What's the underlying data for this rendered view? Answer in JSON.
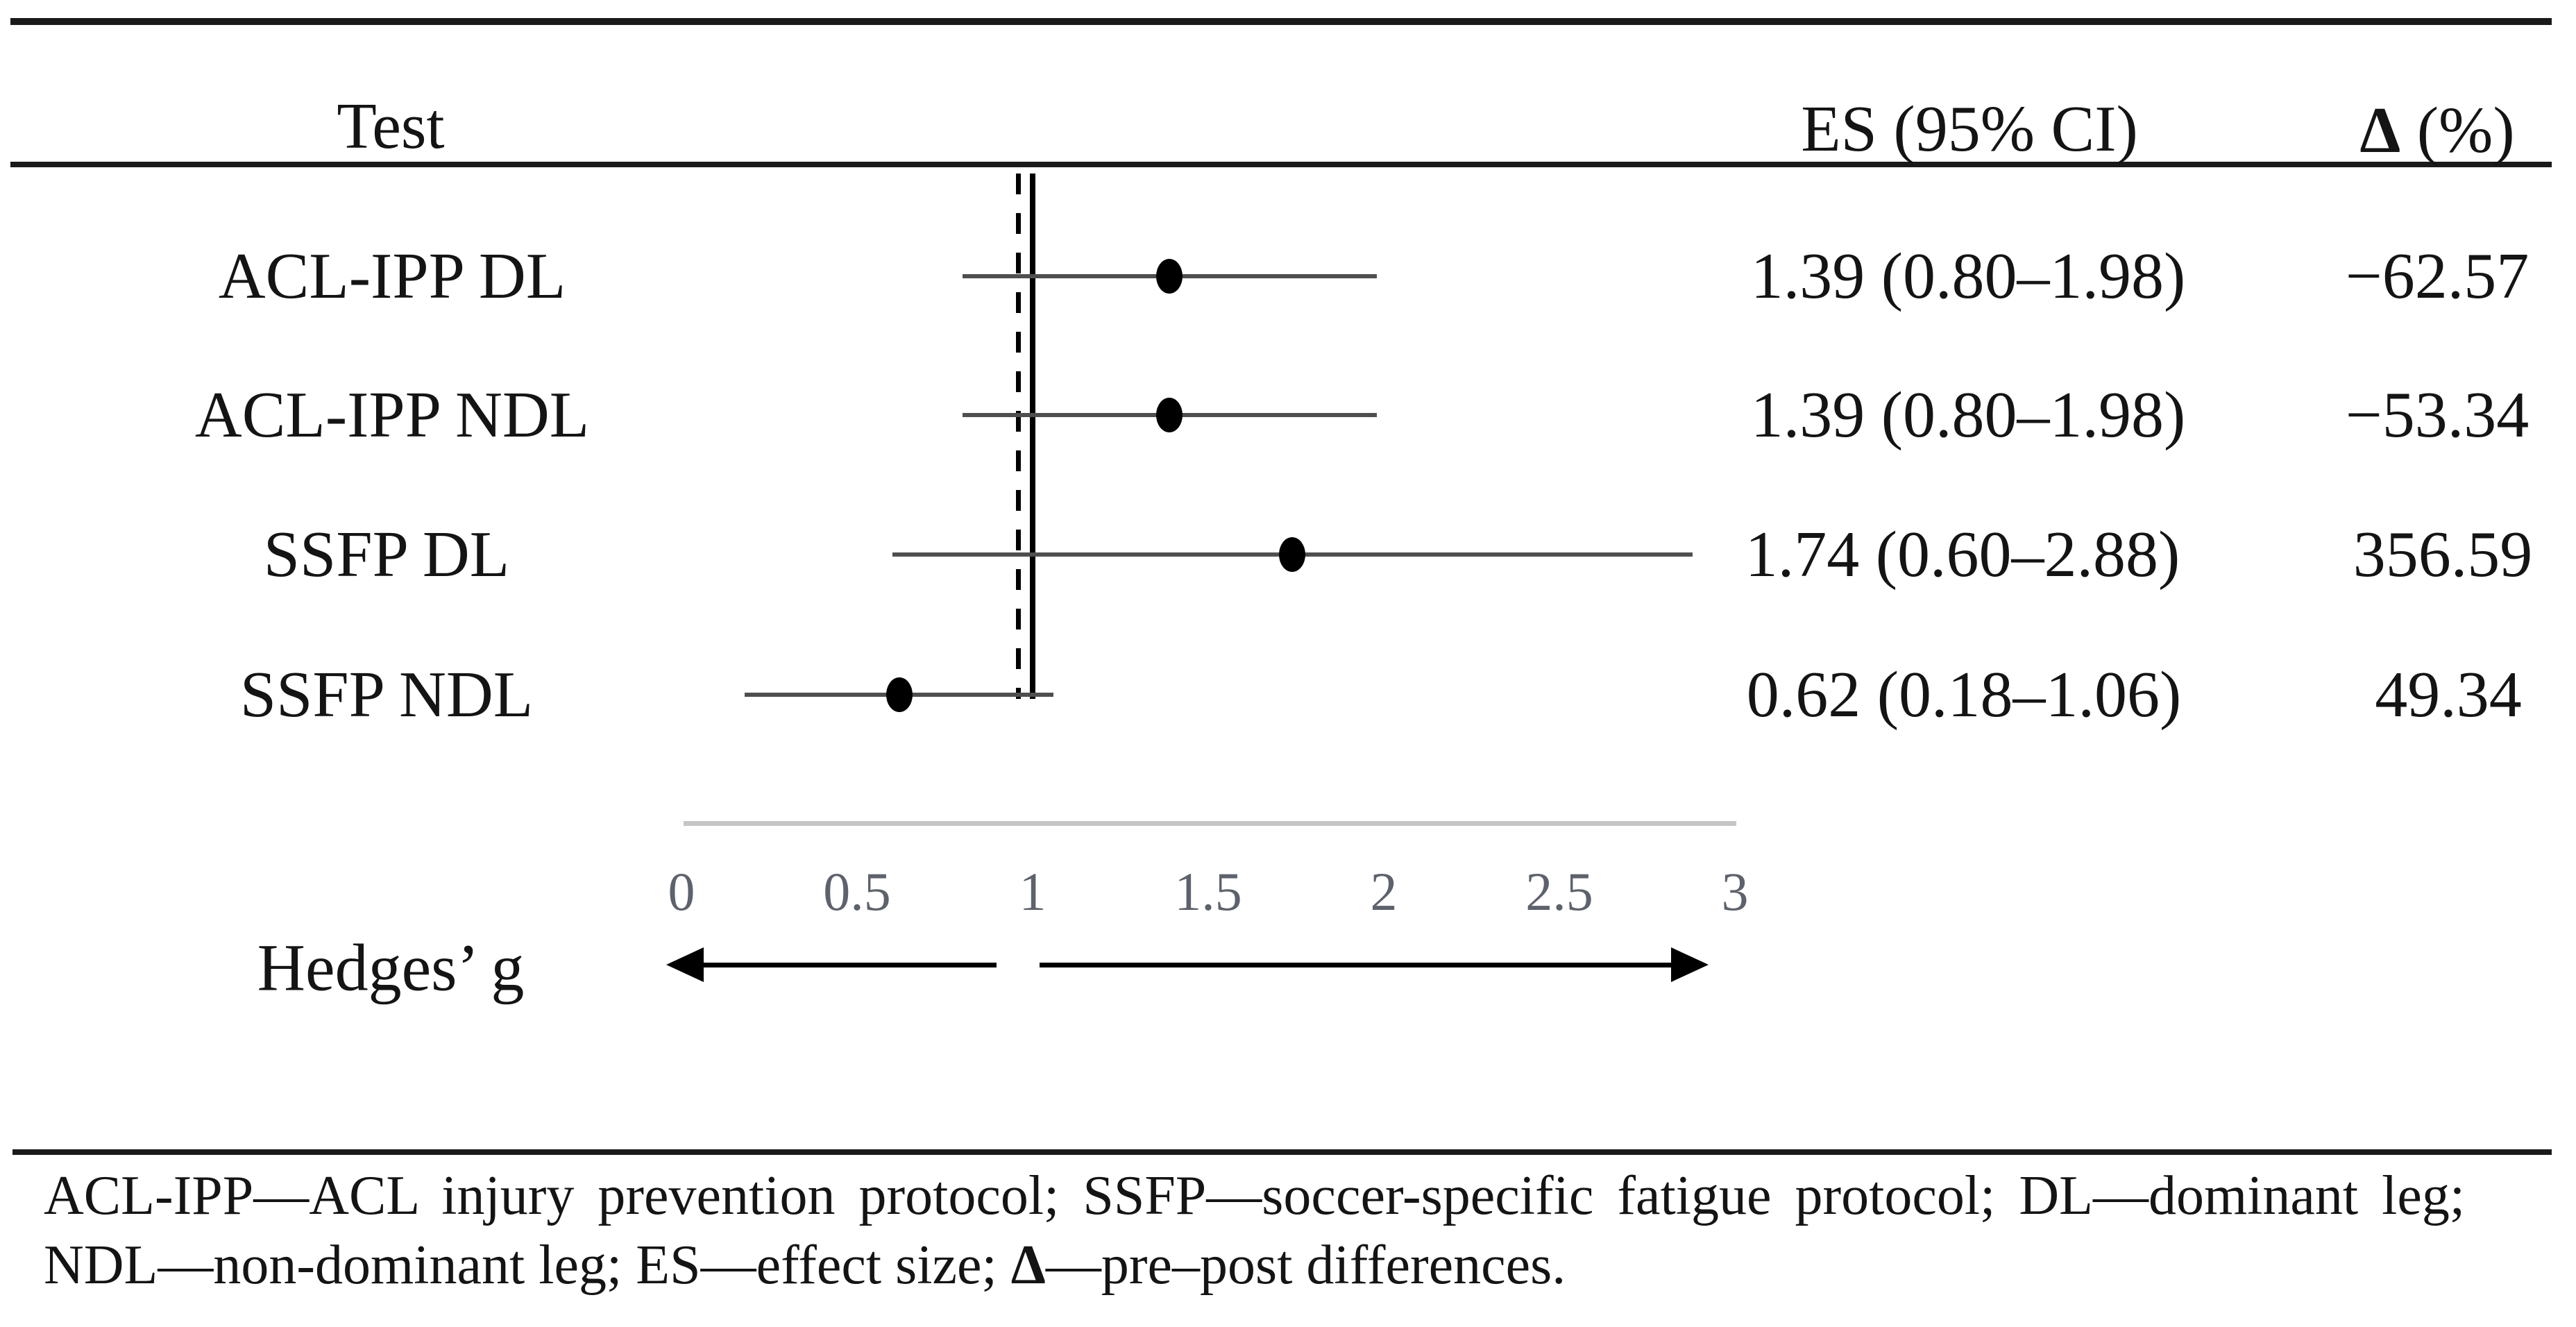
{
  "figure": {
    "header": {
      "test": "Test",
      "es": "ES (95% CI)",
      "delta_symbol": "Δ",
      "delta_rest": " (%)"
    },
    "axis_label": "Hedges’ g",
    "footer": {
      "line1": "ACL-IPP—ACL injury prevention protocol; SSFP—soccer-specific fatigue protocol; DL—dominant leg;",
      "line2_prefix": "NDL—non-dominant leg; ES—effect size; ",
      "line2_delta": "Δ",
      "line2_suffix": "—pre–post differences."
    }
  },
  "chart_data": {
    "type": "forest",
    "title": "",
    "xlabel": "Hedges’ g",
    "rows": [
      {
        "label": "ACL-IPP DL",
        "es": 1.39,
        "ci_low": 0.8,
        "ci_high": 1.98,
        "es_text": "1.39 (0.80–1.98)",
        "delta": -62.57,
        "delta_text": "−62.57"
      },
      {
        "label": "ACL-IPP NDL",
        "es": 1.39,
        "ci_low": 0.8,
        "ci_high": 1.98,
        "es_text": "1.39 (0.80–1.98)",
        "delta": -53.34,
        "delta_text": "−53.34"
      },
      {
        "label": "SSFP DL",
        "es": 1.74,
        "ci_low": 0.6,
        "ci_high": 2.88,
        "es_text": "1.74 (0.60–2.88)",
        "delta": 356.59,
        "delta_text": "356.59"
      },
      {
        "label": "SSFP NDL",
        "es": 0.62,
        "ci_low": 0.18,
        "ci_high": 1.06,
        "es_text": "0.62 (0.18–1.06)",
        "delta": 49.34,
        "delta_text": "49.34"
      }
    ],
    "axis": {
      "min": 0,
      "max": 3,
      "ticks": [
        0,
        0.5,
        1,
        1.5,
        2,
        2.5,
        3
      ],
      "tick_labels": [
        "0",
        "0.5",
        "1",
        "1.5",
        "2",
        "2.5",
        "3"
      ],
      "grid": false
    },
    "reference_lines": [
      {
        "x": 0.96,
        "style": "dashed"
      },
      {
        "x": 1.0,
        "style": "solid"
      }
    ],
    "colors": {
      "marker": "#000000",
      "ci_line": "#4f4f4f",
      "axis_line": "#c6c6c6",
      "tick_text": "#5d626c",
      "rule": "#1a1a1a"
    }
  }
}
